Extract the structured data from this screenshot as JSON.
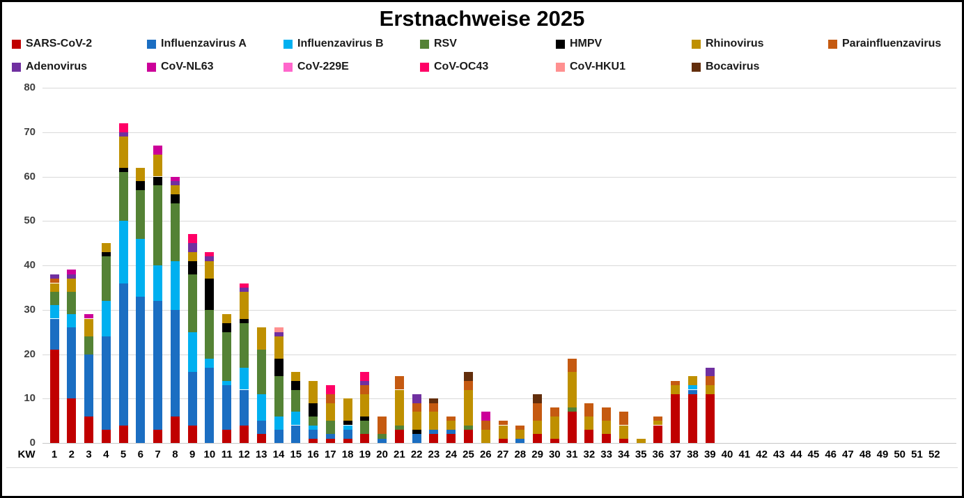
{
  "title": "Erstnachweise 2025",
  "axes": {
    "y_ticks": [
      0,
      10,
      20,
      30,
      40,
      50,
      60,
      70,
      80
    ],
    "x_axis_prefix": "KW"
  },
  "chart_data": {
    "type": "bar",
    "stacked": true,
    "title": "Erstnachweise 2025",
    "x_label_prefix": "KW",
    "categories": [
      1,
      2,
      3,
      4,
      5,
      6,
      7,
      8,
      9,
      10,
      11,
      12,
      13,
      14,
      15,
      16,
      17,
      18,
      19,
      20,
      21,
      22,
      23,
      24,
      25,
      26,
      27,
      28,
      29,
      30,
      31,
      32,
      33,
      34,
      35,
      36,
      37,
      38,
      39,
      40,
      41,
      42,
      43,
      44,
      45,
      46,
      47,
      48,
      49,
      50,
      51,
      52
    ],
    "ylim": [
      0,
      80
    ],
    "y_tick_step": 10,
    "grid": true,
    "legend_position": "top",
    "series": [
      {
        "name": "SARS-CoV-2",
        "color": "#C00000",
        "values": [
          21,
          10,
          6,
          3,
          4,
          0,
          3,
          6,
          4,
          0,
          3,
          4,
          2,
          0,
          0,
          1,
          1,
          1,
          2,
          0,
          3,
          0,
          2,
          2,
          3,
          0,
          1,
          0,
          2,
          1,
          7,
          3,
          2,
          1,
          0,
          4,
          11,
          11,
          11,
          0,
          0,
          0,
          0,
          0,
          0,
          0,
          0,
          0,
          0,
          0,
          0,
          0
        ]
      },
      {
        "name": "Influenzavirus A",
        "color": "#1B6EC2",
        "values": [
          7,
          16,
          14,
          21,
          32,
          33,
          29,
          24,
          12,
          17,
          10,
          8,
          3,
          3,
          4,
          2,
          1,
          2,
          0,
          1,
          0,
          2,
          1,
          1,
          0,
          0,
          0,
          1,
          0,
          0,
          0,
          0,
          0,
          0,
          0,
          0,
          0,
          1,
          0,
          0,
          0,
          0,
          0,
          0,
          0,
          0,
          0,
          0,
          0,
          0,
          0,
          0
        ]
      },
      {
        "name": "Influenzavirus B",
        "color": "#00B0F0",
        "values": [
          3,
          3,
          0,
          8,
          14,
          13,
          8,
          11,
          9,
          2,
          1,
          5,
          6,
          3,
          3,
          1,
          0,
          1,
          0,
          0,
          0,
          0,
          0,
          0,
          0,
          0,
          0,
          0,
          0,
          0,
          0,
          0,
          0,
          0,
          0,
          0,
          0,
          1,
          0,
          0,
          0,
          0,
          0,
          0,
          0,
          0,
          0,
          0,
          0,
          0,
          0,
          0
        ]
      },
      {
        "name": "RSV",
        "color": "#548235",
        "values": [
          3,
          5,
          4,
          10,
          11,
          11,
          18,
          13,
          13,
          11,
          11,
          10,
          10,
          9,
          5,
          2,
          3,
          0,
          3,
          1,
          1,
          0,
          0,
          0,
          1,
          0,
          0,
          0,
          0,
          0,
          1,
          0,
          0,
          0,
          0,
          0,
          0,
          0,
          0,
          0,
          0,
          0,
          0,
          0,
          0,
          0,
          0,
          0,
          0,
          0,
          0,
          0
        ]
      },
      {
        "name": "HMPV",
        "color": "#000000",
        "values": [
          0,
          0,
          0,
          1,
          1,
          2,
          2,
          2,
          3,
          7,
          2,
          1,
          0,
          4,
          2,
          3,
          0,
          1,
          1,
          0,
          0,
          1,
          0,
          0,
          0,
          0,
          0,
          0,
          0,
          0,
          0,
          0,
          0,
          0,
          0,
          0,
          0,
          0,
          0,
          0,
          0,
          0,
          0,
          0,
          0,
          0,
          0,
          0,
          0,
          0,
          0,
          0
        ]
      },
      {
        "name": "Rhinovirus",
        "color": "#BF9000",
        "values": [
          2,
          3,
          4,
          2,
          7,
          3,
          5,
          2,
          2,
          4,
          2,
          6,
          5,
          5,
          2,
          5,
          4,
          5,
          5,
          0,
          8,
          4,
          4,
          2,
          8,
          3,
          3,
          2,
          3,
          5,
          8,
          3,
          3,
          3,
          1,
          1,
          2,
          2,
          2,
          0,
          0,
          0,
          0,
          0,
          0,
          0,
          0,
          0,
          0,
          0,
          0,
          0
        ]
      },
      {
        "name": "Parainfluenzavirus",
        "color": "#C55A11",
        "values": [
          1,
          0,
          0,
          0,
          0,
          0,
          0,
          0,
          0,
          0,
          0,
          0,
          0,
          0,
          0,
          0,
          2,
          0,
          2,
          4,
          3,
          2,
          2,
          1,
          2,
          2,
          1,
          1,
          4,
          2,
          3,
          3,
          3,
          3,
          0,
          1,
          1,
          0,
          2,
          0,
          0,
          0,
          0,
          0,
          0,
          0,
          0,
          0,
          0,
          0,
          0,
          0
        ]
      },
      {
        "name": "Adenovirus",
        "color": "#7030A0",
        "values": [
          1,
          1,
          0,
          0,
          1,
          0,
          0,
          1,
          2,
          1,
          0,
          1,
          0,
          1,
          0,
          0,
          0,
          0,
          1,
          0,
          0,
          2,
          0,
          0,
          0,
          0,
          0,
          0,
          0,
          0,
          0,
          0,
          0,
          0,
          0,
          0,
          0,
          0,
          2,
          0,
          0,
          0,
          0,
          0,
          0,
          0,
          0,
          0,
          0,
          0,
          0,
          0
        ]
      },
      {
        "name": "CoV-NL63",
        "color": "#CC0099",
        "values": [
          0,
          1,
          1,
          0,
          0,
          0,
          2,
          1,
          0,
          0,
          0,
          0,
          0,
          0,
          0,
          0,
          0,
          0,
          0,
          0,
          0,
          0,
          0,
          0,
          0,
          2,
          0,
          0,
          0,
          0,
          0,
          0,
          0,
          0,
          0,
          0,
          0,
          0,
          0,
          0,
          0,
          0,
          0,
          0,
          0,
          0,
          0,
          0,
          0,
          0,
          0,
          0
        ]
      },
      {
        "name": "CoV-229E",
        "color": "#FF66CC",
        "values": [
          0,
          0,
          0,
          0,
          0,
          0,
          0,
          0,
          0,
          0,
          0,
          0,
          0,
          0,
          0,
          0,
          0,
          0,
          0,
          0,
          0,
          0,
          0,
          0,
          0,
          0,
          0,
          0,
          0,
          0,
          0,
          0,
          0,
          0,
          0,
          0,
          0,
          0,
          0,
          0,
          0,
          0,
          0,
          0,
          0,
          0,
          0,
          0,
          0,
          0,
          0,
          0
        ]
      },
      {
        "name": "CoV-OC43",
        "color": "#FF0066",
        "values": [
          0,
          0,
          0,
          0,
          2,
          0,
          0,
          0,
          2,
          1,
          0,
          1,
          0,
          0,
          0,
          0,
          2,
          0,
          2,
          0,
          0,
          0,
          0,
          0,
          0,
          0,
          0,
          0,
          0,
          0,
          0,
          0,
          0,
          0,
          0,
          0,
          0,
          0,
          0,
          0,
          0,
          0,
          0,
          0,
          0,
          0,
          0,
          0,
          0,
          0,
          0,
          0
        ]
      },
      {
        "name": "CoV-HKU1",
        "color": "#FF9090",
        "values": [
          0,
          0,
          0,
          0,
          0,
          0,
          0,
          0,
          0,
          0,
          0,
          0,
          0,
          1,
          0,
          0,
          0,
          0,
          0,
          0,
          0,
          0,
          0,
          0,
          0,
          0,
          0,
          0,
          0,
          0,
          0,
          0,
          0,
          0,
          0,
          0,
          0,
          0,
          0,
          0,
          0,
          0,
          0,
          0,
          0,
          0,
          0,
          0,
          0,
          0,
          0,
          0
        ]
      },
      {
        "name": "Bocavirus",
        "color": "#632E0C",
        "values": [
          0,
          0,
          0,
          0,
          0,
          0,
          0,
          0,
          0,
          0,
          0,
          0,
          0,
          0,
          0,
          0,
          0,
          0,
          0,
          0,
          0,
          0,
          1,
          0,
          2,
          0,
          0,
          0,
          2,
          0,
          0,
          0,
          0,
          0,
          0,
          0,
          0,
          0,
          0,
          0,
          0,
          0,
          0,
          0,
          0,
          0,
          0,
          0,
          0,
          0,
          0,
          0
        ]
      }
    ]
  },
  "layout_note_colors": {
    "gridline": "#D9D9D9",
    "axis_text": "#3F3F3F",
    "title_text": "#000000"
  }
}
